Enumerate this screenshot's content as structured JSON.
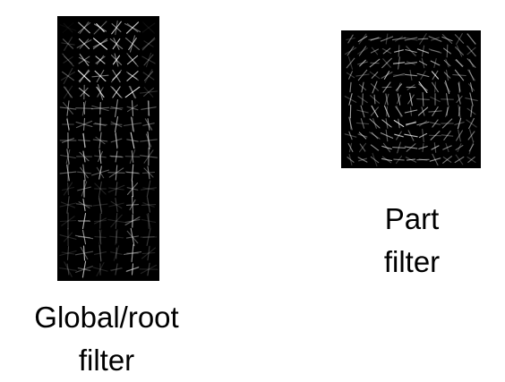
{
  "root_filter": {
    "caption_line1": "Global/root",
    "caption_line2": "filter"
  },
  "part_filter": {
    "caption_line1": "Part",
    "caption_line2": "filter"
  },
  "colors": {
    "background": "#ffffff",
    "panel": "#000000",
    "stroke": "#ffffff"
  }
}
